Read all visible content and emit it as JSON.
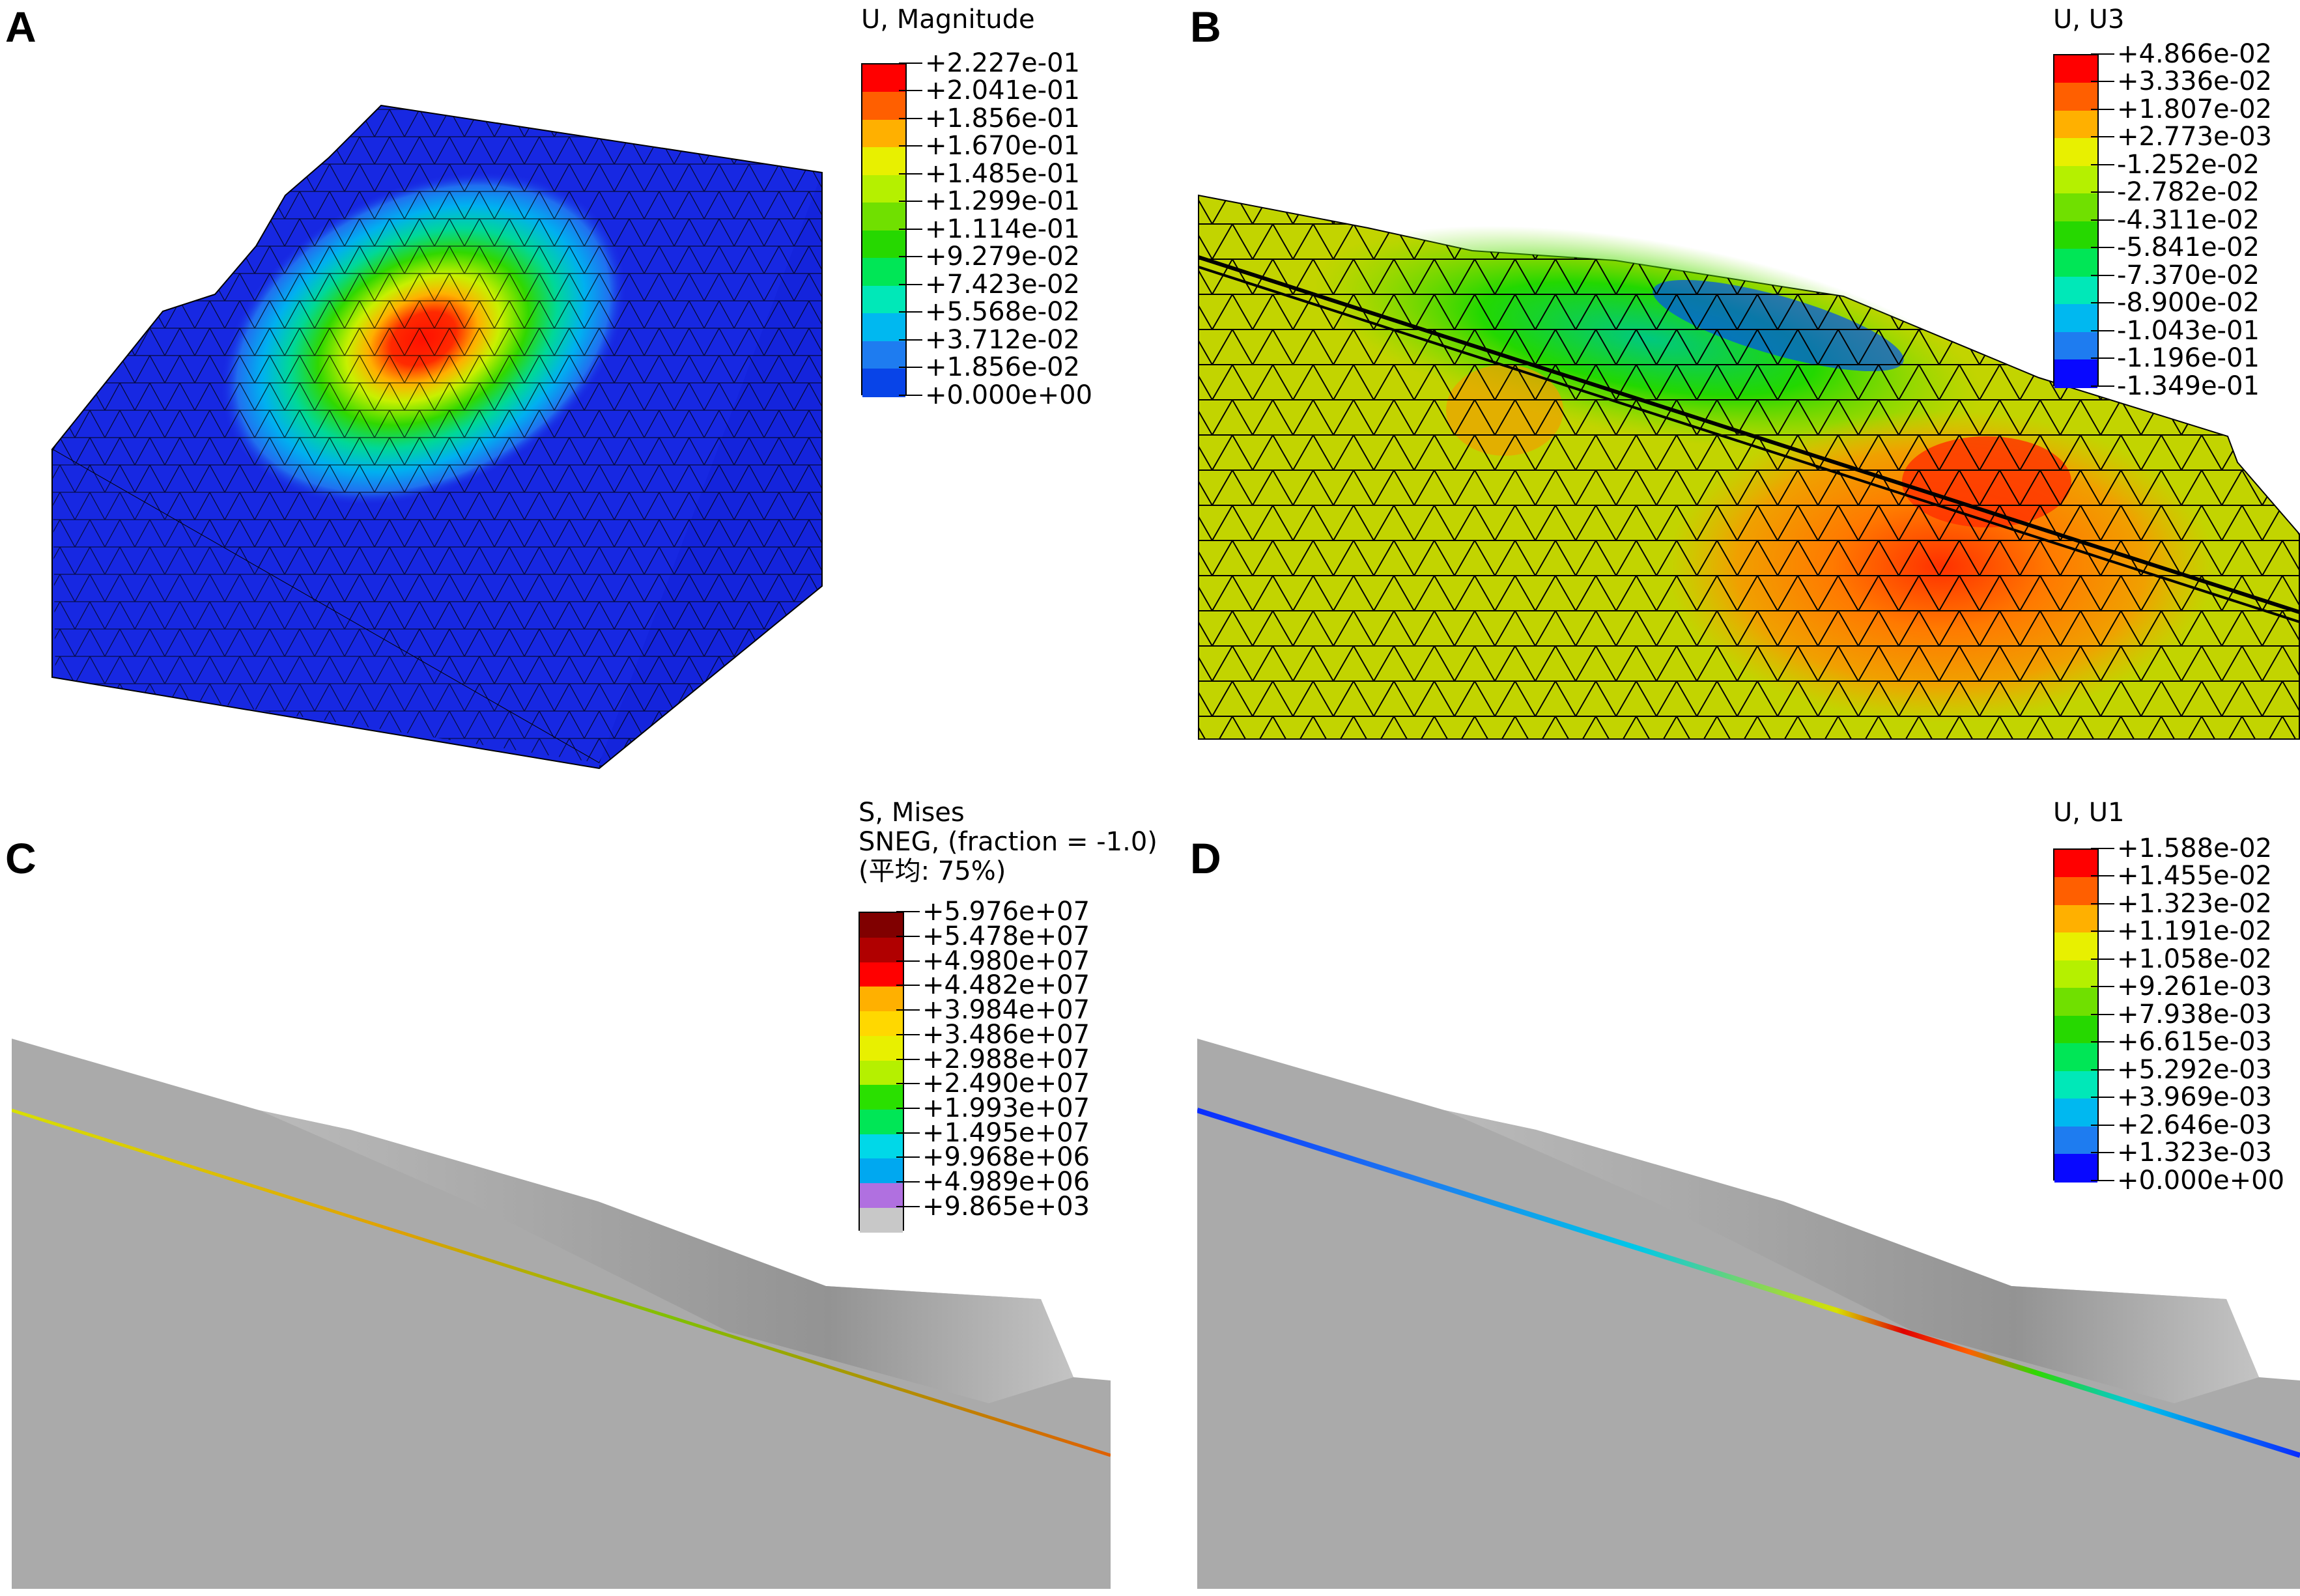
{
  "panels": [
    {
      "letter": "A",
      "legend": {
        "title_lines": [
          "U, Magnitude"
        ],
        "labels": [
          "+2.227e-01",
          "+2.041e-01",
          "+1.856e-01",
          "+1.670e-01",
          "+1.485e-01",
          "+1.299e-01",
          "+1.114e-01",
          "+9.279e-02",
          "+7.423e-02",
          "+5.568e-02",
          "+3.712e-02",
          "+1.856e-02",
          "+0.000e+00"
        ],
        "colors": [
          "#ff0000",
          "#ff5f00",
          "#ffb000",
          "#e8f000",
          "#b5f000",
          "#70e000",
          "#26d800",
          "#00e656",
          "#00e8b8",
          "#00b8f0",
          "#1e7cf0",
          "#0844e8"
        ]
      }
    },
    {
      "letter": "B",
      "legend": {
        "title_lines": [
          "U, U3"
        ],
        "labels": [
          "+4.866e-02",
          "+3.336e-02",
          "+1.807e-02",
          "+2.773e-03",
          "-1.252e-02",
          "-2.782e-02",
          "-4.311e-02",
          "-5.841e-02",
          "-7.370e-02",
          "-8.900e-02",
          "-1.043e-01",
          "-1.196e-01",
          "-1.349e-01"
        ],
        "colors": [
          "#ff0000",
          "#ff5f00",
          "#ffb000",
          "#e8f000",
          "#b5f000",
          "#70e000",
          "#26d800",
          "#00e656",
          "#00e8b8",
          "#00b8f0",
          "#1e7cf0",
          "#0808ff"
        ]
      }
    },
    {
      "letter": "C",
      "legend": {
        "title_lines": [
          "S, Mises",
          "SNEG, (fraction = -1.0)",
          "(平均: 75%)"
        ],
        "labels": [
          "+5.976e+07",
          "+5.478e+07",
          "+4.980e+07",
          "+4.482e+07",
          "+3.984e+07",
          "+3.486e+07",
          "+2.988e+07",
          "+2.490e+07",
          "+1.993e+07",
          "+1.495e+07",
          "+9.968e+06",
          "+4.989e+06",
          "+9.865e+03"
        ],
        "colors": [
          "#800000",
          "#b00000",
          "#ff0000",
          "#ffb000",
          "#ffd800",
          "#e8f000",
          "#b5f000",
          "#2ae000",
          "#00e656",
          "#00d8e8",
          "#00a8f0",
          "#b070e0",
          "#c8c8c8"
        ]
      }
    },
    {
      "letter": "D",
      "legend": {
        "title_lines": [
          "U, U1"
        ],
        "labels": [
          "+1.588e-02",
          "+1.455e-02",
          "+1.323e-02",
          "+1.191e-02",
          "+1.058e-02",
          "+9.261e-03",
          "+7.938e-03",
          "+6.615e-03",
          "+5.292e-03",
          "+3.969e-03",
          "+2.646e-03",
          "+1.323e-03",
          "+0.000e+00"
        ],
        "colors": [
          "#ff0000",
          "#ff5f00",
          "#ffb000",
          "#e8f000",
          "#b5f000",
          "#70e000",
          "#26d800",
          "#00e656",
          "#00e8b8",
          "#00b8f0",
          "#1e7cf0",
          "#0808ff"
        ]
      }
    }
  ]
}
